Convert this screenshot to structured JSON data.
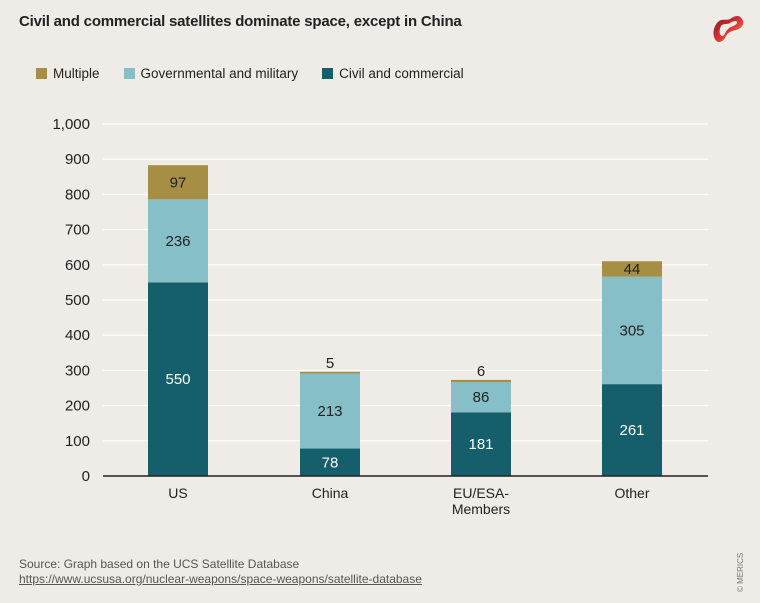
{
  "header": {
    "title": "Civil and commercial satellites dominate space, except in China",
    "logo": "merics-logo-icon"
  },
  "footer": {
    "source": "Source: Graph based on the UCS Satellite Database",
    "link": "https://www.ucsusa.org/nuclear-weapons/space-weapons/satellite-database",
    "copyright": "© MERICS"
  },
  "colors": {
    "multiple": "#a68f45",
    "governmental": "#87bfc8",
    "civil": "#155f6d",
    "background": "#efebe6",
    "gridline": "#ffffff",
    "axis": "#222222"
  },
  "chart_data": {
    "type": "bar",
    "stacked": true,
    "title": "Civil and commercial satellites dominate space, except in China",
    "xlabel": "",
    "ylabel": "",
    "categories": [
      "US",
      "China",
      "EU/ESA-\nMembers",
      "Other"
    ],
    "category_lines": [
      [
        "US"
      ],
      [
        "China"
      ],
      [
        "EU/ESA-",
        "Members"
      ],
      [
        "Other"
      ]
    ],
    "series": [
      {
        "name": "Civil and commercial",
        "key": "civil",
        "values": [
          550,
          78,
          181,
          261
        ]
      },
      {
        "name": "Governmental and military",
        "key": "governmental",
        "values": [
          236,
          213,
          86,
          305
        ]
      },
      {
        "name": "Multiple",
        "key": "multiple",
        "values": [
          97,
          5,
          6,
          44
        ]
      }
    ],
    "legend_order": [
      "Multiple",
      "Governmental and military",
      "Civil and commercial"
    ],
    "legend_keys": [
      "multiple",
      "governmental",
      "civil"
    ],
    "legend_position": "top-left",
    "ylim": [
      0,
      1000
    ],
    "yticks": [
      0,
      100,
      200,
      300,
      400,
      500,
      600,
      700,
      800,
      900,
      1000
    ],
    "ytick_labels": [
      "0",
      "100",
      "200",
      "300",
      "400",
      "500",
      "600",
      "700",
      "800",
      "900",
      "1,000"
    ],
    "grid": true
  }
}
